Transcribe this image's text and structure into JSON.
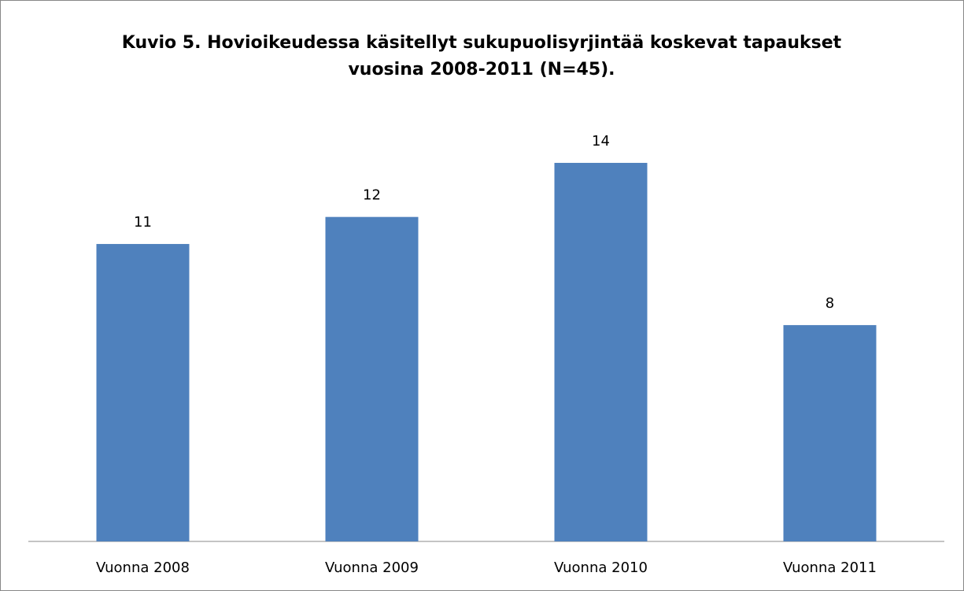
{
  "chart_data": {
    "type": "bar",
    "title": "Kuvio 5. Hovioikeudessa käsitellyt sukupuolisyrjintää koskevat tapaukset vuosina 2008-2011 (N=45).",
    "categories": [
      "Vuonna 2008",
      "Vuonna 2009",
      "Vuonna 2010",
      "Vuonna 2011"
    ],
    "values": [
      11,
      12,
      14,
      8
    ],
    "color": "#4f81bd"
  }
}
